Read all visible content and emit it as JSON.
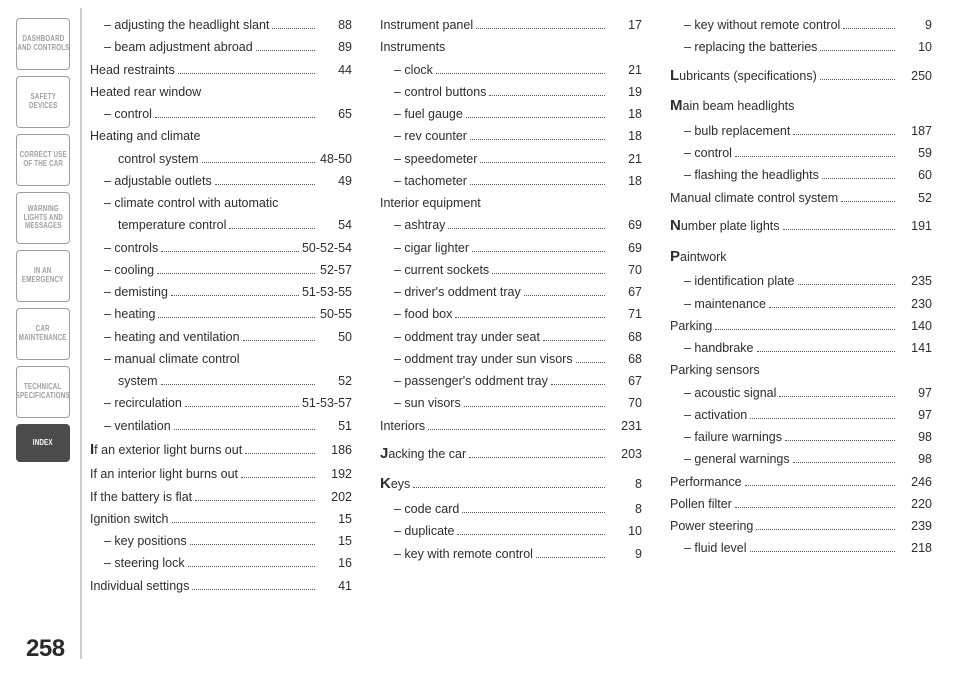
{
  "page_number": "258",
  "tabs": [
    {
      "id": "dashboard",
      "label": "DASHBOARD\nAND CONTROLS",
      "active": false
    },
    {
      "id": "safety",
      "label": "SAFETY\nDEVICES",
      "active": false
    },
    {
      "id": "correct",
      "label": "CORRECT USE\nOF THE CAR",
      "active": false
    },
    {
      "id": "warning",
      "label": "WARNING\nLIGHTS AND\nMESSAGES",
      "active": false
    },
    {
      "id": "emergency",
      "label": "IN AN\nEMERGENCY",
      "active": false
    },
    {
      "id": "maintenance",
      "label": "CAR\nMAINTENANCE",
      "active": false
    },
    {
      "id": "technical",
      "label": "TECHNICAL\nSPECIFICATIONS",
      "active": false
    },
    {
      "id": "index",
      "label": "INDEX",
      "active": true
    }
  ],
  "columns": [
    [
      {
        "type": "sub",
        "label": "– adjusting the headlight slant",
        "page": "88"
      },
      {
        "type": "sub",
        "label": "– beam adjustment abroad",
        "page": "89"
      },
      {
        "type": "row",
        "label": "Head restraints",
        "page": "44"
      },
      {
        "type": "header",
        "label": "Heated rear window"
      },
      {
        "type": "sub",
        "label": "– control",
        "page": "65"
      },
      {
        "type": "header",
        "label": "Heating and climate"
      },
      {
        "type": "sub",
        "label": "control system",
        "page": "48-50",
        "nopad": true,
        "indent": 2
      },
      {
        "type": "sub",
        "label": "– adjustable outlets",
        "page": "49"
      },
      {
        "type": "header",
        "label": "– climate control with automatic",
        "indent": 1
      },
      {
        "type": "sub",
        "label": "temperature control",
        "page": "54",
        "indent": 2
      },
      {
        "type": "sub",
        "label": "– controls",
        "page": "50-52-54"
      },
      {
        "type": "sub",
        "label": "– cooling",
        "page": "52-57"
      },
      {
        "type": "sub",
        "label": "– demisting",
        "page": "51-53-55"
      },
      {
        "type": "sub",
        "label": "– heating",
        "page": "50-55"
      },
      {
        "type": "sub",
        "label": "– heating and ventilation",
        "page": "50"
      },
      {
        "type": "header",
        "label": "– manual climate control",
        "indent": 1
      },
      {
        "type": "sub",
        "label": "system",
        "page": "52",
        "indent": 2
      },
      {
        "type": "sub",
        "label": "– recirculation",
        "page": "51-53-57"
      },
      {
        "type": "sub",
        "label": "– ventilation",
        "page": "51"
      },
      {
        "type": "row",
        "label": "f an exterior light burns out",
        "page": "186",
        "big": "I"
      },
      {
        "type": "row",
        "label": "If an interior light burns out",
        "page": "192"
      },
      {
        "type": "row",
        "label": "If the battery is flat",
        "page": "202"
      },
      {
        "type": "row",
        "label": "Ignition switch",
        "page": "15"
      },
      {
        "type": "sub",
        "label": "– key positions",
        "page": "15"
      },
      {
        "type": "sub",
        "label": "– steering lock",
        "page": "16"
      },
      {
        "type": "row",
        "label": "Individual settings",
        "page": "41"
      }
    ],
    [
      {
        "type": "row",
        "label": "Instrument panel",
        "page": "17"
      },
      {
        "type": "header",
        "label": "Instruments"
      },
      {
        "type": "sub",
        "label": "– clock",
        "page": "21"
      },
      {
        "type": "sub",
        "label": "– control buttons",
        "page": "19"
      },
      {
        "type": "sub",
        "label": "– fuel gauge",
        "page": "18"
      },
      {
        "type": "sub",
        "label": "– rev counter",
        "page": "18"
      },
      {
        "type": "sub",
        "label": "– speedometer",
        "page": "21"
      },
      {
        "type": "sub",
        "label": "– tachometer",
        "page": "18"
      },
      {
        "type": "header",
        "label": "Interior equipment"
      },
      {
        "type": "sub",
        "label": "– ashtray",
        "page": "69"
      },
      {
        "type": "sub",
        "label": "– cigar lighter",
        "page": "69"
      },
      {
        "type": "sub",
        "label": "– current sockets",
        "page": "70"
      },
      {
        "type": "sub",
        "label": "– driver's oddment tray",
        "page": "67"
      },
      {
        "type": "sub",
        "label": "– food box",
        "page": "71"
      },
      {
        "type": "sub",
        "label": "– oddment tray under seat",
        "page": "68"
      },
      {
        "type": "sub",
        "label": "– oddment tray under sun visors",
        "page": "68"
      },
      {
        "type": "sub",
        "label": "– passenger's oddment tray",
        "page": "67"
      },
      {
        "type": "sub",
        "label": "– sun visors",
        "page": "70"
      },
      {
        "type": "row",
        "label": "Interiors",
        "page": "231"
      },
      {
        "type": "spacer"
      },
      {
        "type": "row",
        "label": "acking the car",
        "page": "203",
        "big": "J"
      },
      {
        "type": "spacer"
      },
      {
        "type": "row",
        "label": "eys",
        "page": "8",
        "big": "K"
      },
      {
        "type": "sub",
        "label": "– code card",
        "page": "8"
      },
      {
        "type": "sub",
        "label": "– duplicate",
        "page": "10"
      },
      {
        "type": "sub",
        "label": "– key with remote control",
        "page": "9"
      }
    ],
    [
      {
        "type": "sub",
        "label": "– key without remote control",
        "page": "9"
      },
      {
        "type": "sub",
        "label": "– replacing the batteries",
        "page": "10"
      },
      {
        "type": "spacer"
      },
      {
        "type": "row",
        "label": "ubricants (specifications)",
        "page": "250",
        "big": "L"
      },
      {
        "type": "spacer"
      },
      {
        "type": "header",
        "label": "ain beam headlights",
        "big": "M"
      },
      {
        "type": "sub",
        "label": "– bulb replacement",
        "page": "187"
      },
      {
        "type": "sub",
        "label": "– control",
        "page": "59"
      },
      {
        "type": "sub",
        "label": "– flashing the headlights",
        "page": "60"
      },
      {
        "type": "row",
        "label": "Manual climate control system",
        "page": "52"
      },
      {
        "type": "spacer"
      },
      {
        "type": "row",
        "label": "umber plate lights",
        "page": "191",
        "big": "N"
      },
      {
        "type": "spacer"
      },
      {
        "type": "header",
        "label": "aintwork",
        "big": "P"
      },
      {
        "type": "sub",
        "label": "– identification plate",
        "page": "235"
      },
      {
        "type": "sub",
        "label": "– maintenance",
        "page": "230"
      },
      {
        "type": "row",
        "label": "Parking",
        "page": "140"
      },
      {
        "type": "sub",
        "label": "– handbrake",
        "page": "141"
      },
      {
        "type": "header",
        "label": "Parking sensors"
      },
      {
        "type": "sub",
        "label": "– acoustic signal",
        "page": "97"
      },
      {
        "type": "sub",
        "label": "– activation",
        "page": "97"
      },
      {
        "type": "sub",
        "label": "– failure warnings",
        "page": "98"
      },
      {
        "type": "sub",
        "label": "– general warnings",
        "page": "98"
      },
      {
        "type": "row",
        "label": "Performance",
        "page": "246"
      },
      {
        "type": "row",
        "label": "Pollen filter",
        "page": "220"
      },
      {
        "type": "row",
        "label": "Power steering",
        "page": "239"
      },
      {
        "type": "sub",
        "label": "– fluid level",
        "page": "218"
      }
    ]
  ]
}
